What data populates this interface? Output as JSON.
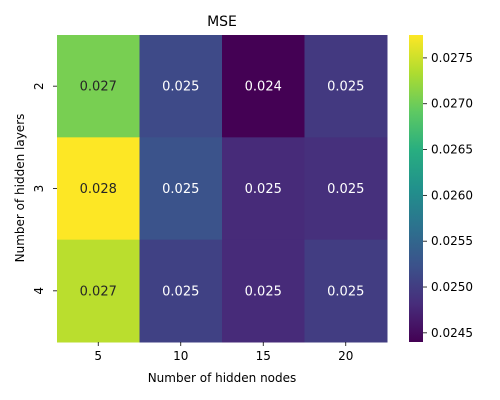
{
  "chart_data": {
    "type": "heatmap",
    "title": "MSE",
    "xlabel": "Number of hidden nodes",
    "ylabel": "Number of hidden layers",
    "x_categories": [
      "5",
      "10",
      "15",
      "20"
    ],
    "y_categories": [
      "2",
      "3",
      "4"
    ],
    "values": [
      [
        0.02705,
        0.02515,
        0.0244,
        0.02495
      ],
      [
        0.02775,
        0.02525,
        0.0248,
        0.02485
      ],
      [
        0.0274,
        0.02505,
        0.0248,
        0.025
      ]
    ],
    "cell_labels": [
      [
        "0.027",
        "0.025",
        "0.024",
        "0.025"
      ],
      [
        "0.028",
        "0.025",
        "0.025",
        "0.025"
      ],
      [
        "0.027",
        "0.025",
        "0.025",
        "0.025"
      ]
    ],
    "colorbar": {
      "colormap": "viridis",
      "range": [
        0.0244,
        0.02775
      ],
      "ticks": [
        "0.0245",
        "0.0250",
        "0.0255",
        "0.0260",
        "0.0265",
        "0.0270",
        "0.0275"
      ]
    },
    "grid": false,
    "legend": "colorbar-right"
  }
}
